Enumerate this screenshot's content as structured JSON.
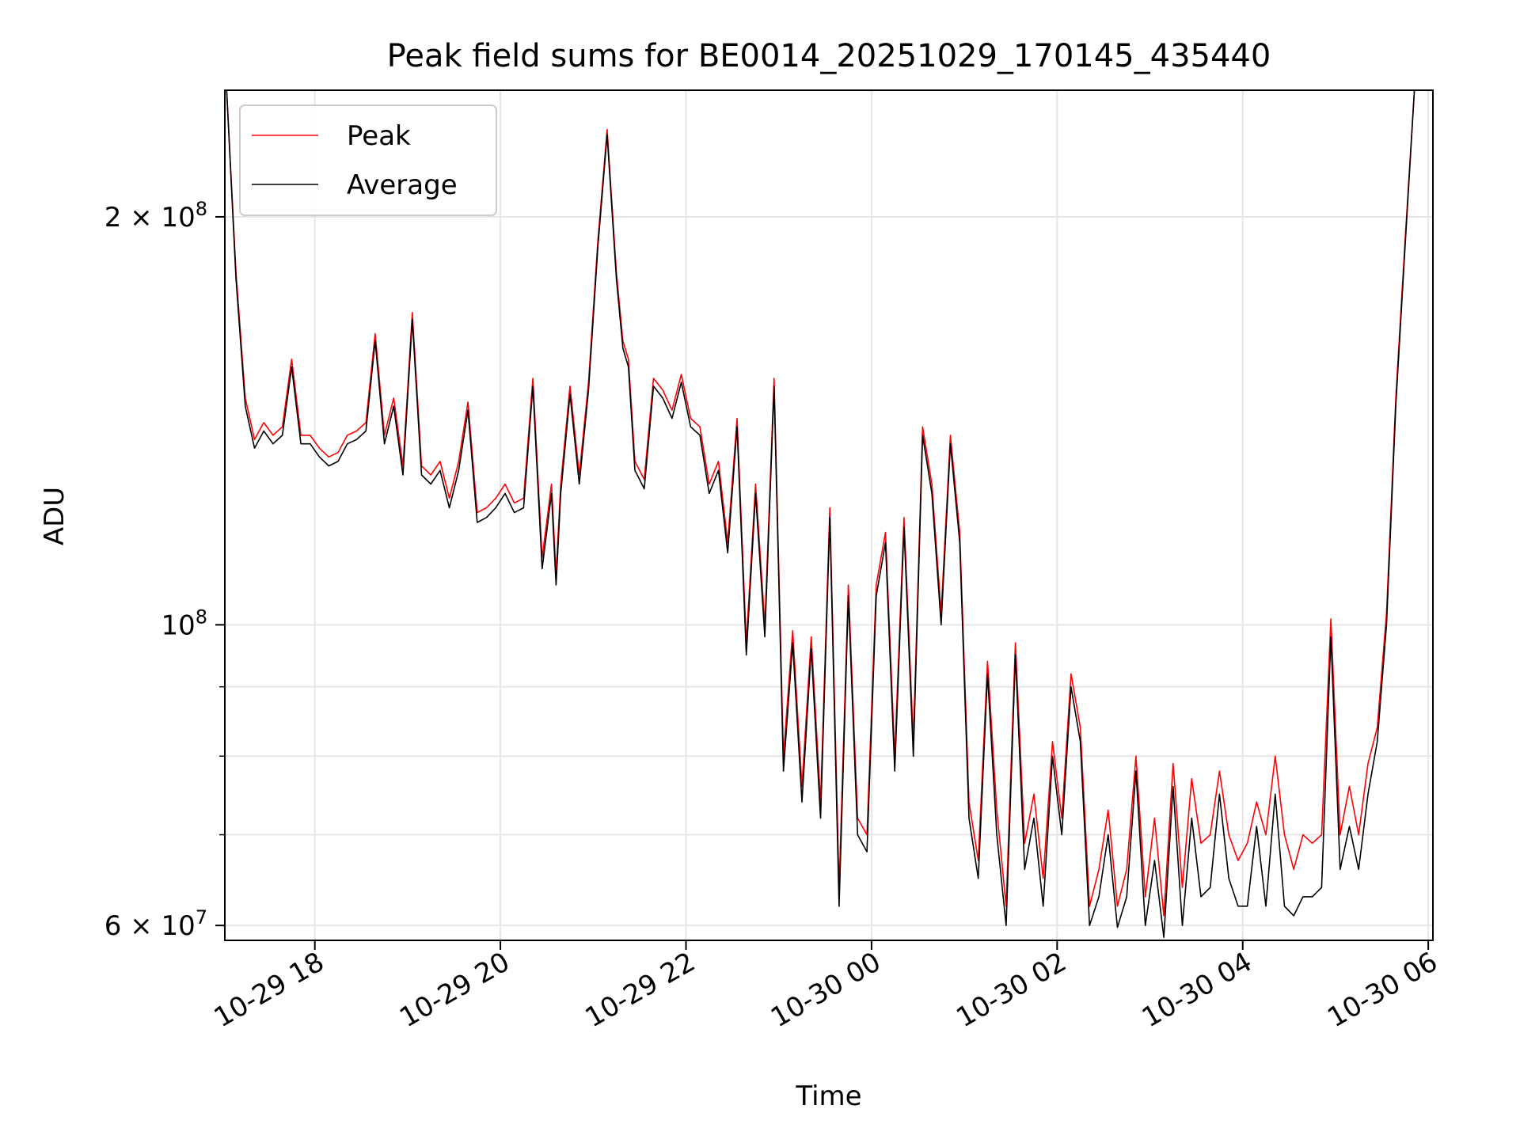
{
  "chart_data": {
    "type": "line",
    "title": "Peak field sums for BE0014_20251029_170145_435440",
    "xlabel": "Time",
    "ylabel": "ADU",
    "y_scale": "log",
    "ylim": [
      58500000,
      248000000
    ],
    "xlim_hours": [
      -6.97,
      6.05
    ],
    "x_axis_origin": "10-30 00:00",
    "x_ticks": [
      {
        "hour": -6,
        "label": "10-29 18"
      },
      {
        "hour": -4,
        "label": "10-29 20"
      },
      {
        "hour": -2,
        "label": "10-29 22"
      },
      {
        "hour": 0,
        "label": "10-30 00"
      },
      {
        "hour": 2,
        "label": "10-30 02"
      },
      {
        "hour": 4,
        "label": "10-30 04"
      },
      {
        "hour": 6,
        "label": "10-30 06"
      }
    ],
    "y_ticks": [
      {
        "value": 60000000,
        "label": "6 × 10",
        "exp": "7"
      },
      {
        "value": 100000000,
        "label": "10",
        "exp": "8"
      },
      {
        "value": 200000000,
        "label": "2 × 10",
        "exp": "8"
      }
    ],
    "y_minor_ticks": [
      70000000,
      80000000,
      90000000
    ],
    "grid": true,
    "legend": {
      "position": "top-left",
      "entries": [
        {
          "name": "Peak",
          "color": "#ff0000"
        },
        {
          "name": "Average",
          "color": "#000000"
        }
      ]
    },
    "series": [
      {
        "name": "Average",
        "color": "#000000",
        "x_hours": [
          -6.95,
          -6.85,
          -6.75,
          -6.65,
          -6.55,
          -6.45,
          -6.35,
          -6.25,
          -6.15,
          -6.05,
          -5.95,
          -5.85,
          -5.75,
          -5.65,
          -5.55,
          -5.45,
          -5.35,
          -5.25,
          -5.15,
          -5.05,
          -4.95,
          -4.85,
          -4.75,
          -4.65,
          -4.55,
          -4.45,
          -4.35,
          -4.25,
          -4.15,
          -4.05,
          -3.95,
          -3.85,
          -3.75,
          -3.65,
          -3.55,
          -3.45,
          -3.4,
          -3.35,
          -3.25,
          -3.15,
          -3.05,
          -2.95,
          -2.85,
          -2.75,
          -2.68,
          -2.62,
          -2.55,
          -2.45,
          -2.35,
          -2.25,
          -2.15,
          -2.05,
          -1.95,
          -1.85,
          -1.75,
          -1.65,
          -1.55,
          -1.45,
          -1.35,
          -1.25,
          -1.15,
          -1.05,
          -0.95,
          -0.85,
          -0.75,
          -0.65,
          -0.55,
          -0.45,
          -0.35,
          -0.25,
          -0.15,
          -0.05,
          0.05,
          0.15,
          0.25,
          0.35,
          0.45,
          0.55,
          0.65,
          0.75,
          0.85,
          0.95,
          1.05,
          1.15,
          1.25,
          1.35,
          1.45,
          1.55,
          1.65,
          1.75,
          1.85,
          1.95,
          2.05,
          2.15,
          2.25,
          2.35,
          2.45,
          2.55,
          2.65,
          2.75,
          2.85,
          2.95,
          3.05,
          3.15,
          3.25,
          3.35,
          3.45,
          3.55,
          3.65,
          3.75,
          3.85,
          3.95,
          4.05,
          4.15,
          4.25,
          4.35,
          4.45,
          4.55,
          4.65,
          4.75,
          4.85,
          4.95,
          5.05,
          5.15,
          5.25,
          5.35,
          5.45,
          5.55,
          5.65,
          5.75,
          5.85,
          5.95
        ],
        "values": [
          248000000,
          180000000,
          145000000,
          135000000,
          139000000,
          136000000,
          138000000,
          155000000,
          136000000,
          136000000,
          133000000,
          131000000,
          132000000,
          136000000,
          137000000,
          139000000,
          162000000,
          136000000,
          145000000,
          129000000,
          168000000,
          129000000,
          127000000,
          130000000,
          122000000,
          130000000,
          144000000,
          119000000,
          120000000,
          122000000,
          125000000,
          121000000,
          122000000,
          150000000,
          110000000,
          125000000,
          107000000,
          125000000,
          148000000,
          127000000,
          149000000,
          190000000,
          230000000,
          180000000,
          160000000,
          155000000,
          130000000,
          126000000,
          150000000,
          147000000,
          142000000,
          151000000,
          140000000,
          138000000,
          125000000,
          130000000,
          113000000,
          140000000,
          95000000,
          125000000,
          98000000,
          150000000,
          78000000,
          97000000,
          74000000,
          96000000,
          72000000,
          120000000,
          62000000,
          105000000,
          70000000,
          68000000,
          105000000,
          115000000,
          78000000,
          118000000,
          80000000,
          138000000,
          125000000,
          100000000,
          136000000,
          115000000,
          72000000,
          65000000,
          92000000,
          70000000,
          60000000,
          95000000,
          66000000,
          72000000,
          62000000,
          80000000,
          70000000,
          90000000,
          82000000,
          60000000,
          63000000,
          70000000,
          59800000,
          63000000,
          78000000,
          60000000,
          67000000,
          58800000,
          76000000,
          60000000,
          72000000,
          63000000,
          64000000,
          75000000,
          65000000,
          62000000,
          62000000,
          71000000,
          62000000,
          75000000,
          62000000,
          61000000,
          63000000,
          63000000,
          64000000,
          98000000,
          66000000,
          71000000,
          66000000,
          75000000,
          82000000,
          100000000,
          145000000,
          190000000,
          248000000,
          248000000
        ]
      },
      {
        "name": "Peak",
        "color": "#ff0000",
        "x_hours": [
          -6.95,
          -6.85,
          -6.75,
          -6.65,
          -6.55,
          -6.45,
          -6.35,
          -6.25,
          -6.15,
          -6.05,
          -5.95,
          -5.85,
          -5.75,
          -5.65,
          -5.55,
          -5.45,
          -5.35,
          -5.25,
          -5.15,
          -5.05,
          -4.95,
          -4.85,
          -4.75,
          -4.65,
          -4.55,
          -4.45,
          -4.35,
          -4.25,
          -4.15,
          -4.05,
          -3.95,
          -3.85,
          -3.75,
          -3.65,
          -3.55,
          -3.45,
          -3.4,
          -3.35,
          -3.25,
          -3.15,
          -3.05,
          -2.95,
          -2.85,
          -2.75,
          -2.68,
          -2.62,
          -2.55,
          -2.45,
          -2.35,
          -2.25,
          -2.15,
          -2.05,
          -1.95,
          -1.85,
          -1.75,
          -1.65,
          -1.55,
          -1.45,
          -1.35,
          -1.25,
          -1.15,
          -1.05,
          -0.95,
          -0.85,
          -0.75,
          -0.65,
          -0.55,
          -0.45,
          -0.35,
          -0.25,
          -0.15,
          -0.05,
          0.05,
          0.15,
          0.25,
          0.35,
          0.45,
          0.55,
          0.65,
          0.75,
          0.85,
          0.95,
          1.05,
          1.15,
          1.25,
          1.35,
          1.45,
          1.55,
          1.65,
          1.75,
          1.85,
          1.95,
          2.05,
          2.15,
          2.25,
          2.35,
          2.45,
          2.55,
          2.65,
          2.75,
          2.85,
          2.95,
          3.05,
          3.15,
          3.25,
          3.35,
          3.45,
          3.55,
          3.65,
          3.75,
          3.85,
          3.95,
          4.05,
          4.15,
          4.25,
          4.35,
          4.45,
          4.55,
          4.65,
          4.75,
          4.85,
          4.95,
          5.05,
          5.15,
          5.25,
          5.35,
          5.45,
          5.55,
          5.65,
          5.75,
          5.85,
          5.95
        ],
        "values": [
          248000000,
          182000000,
          147000000,
          137000000,
          141000000,
          138000000,
          140000000,
          157000000,
          138000000,
          138000000,
          135000000,
          133000000,
          134000000,
          138000000,
          139000000,
          141000000,
          164000000,
          138000000,
          147000000,
          131000000,
          170000000,
          131000000,
          129000000,
          132000000,
          124000000,
          132000000,
          146000000,
          121000000,
          122000000,
          124000000,
          127000000,
          123000000,
          124000000,
          152000000,
          112000000,
          127000000,
          109000000,
          127000000,
          150000000,
          129000000,
          151000000,
          192000000,
          232000000,
          182000000,
          162000000,
          157000000,
          132000000,
          128000000,
          152000000,
          149000000,
          144000000,
          153000000,
          142000000,
          140000000,
          127000000,
          132000000,
          115000000,
          142000000,
          97000000,
          127000000,
          100000000,
          152000000,
          80000000,
          99000000,
          76000000,
          98000000,
          74000000,
          122000000,
          64000000,
          107000000,
          72000000,
          70000000,
          107000000,
          117000000,
          80000000,
          120000000,
          82000000,
          140000000,
          127000000,
          102000000,
          138000000,
          117000000,
          74000000,
          67000000,
          94000000,
          73000000,
          62000000,
          97000000,
          69000000,
          75000000,
          65000000,
          82000000,
          72000000,
          92000000,
          84000000,
          62000000,
          66000000,
          73000000,
          62000000,
          66000000,
          80000000,
          63000000,
          72000000,
          61000000,
          79000000,
          64000000,
          77000000,
          69000000,
          70000000,
          78000000,
          70000000,
          67000000,
          69000000,
          74000000,
          70000000,
          80000000,
          70000000,
          66000000,
          70000000,
          69000000,
          70000000,
          101000000,
          70000000,
          76000000,
          70000000,
          79000000,
          84000000,
          102000000,
          147000000,
          192000000,
          248000000,
          248000000
        ]
      }
    ]
  }
}
